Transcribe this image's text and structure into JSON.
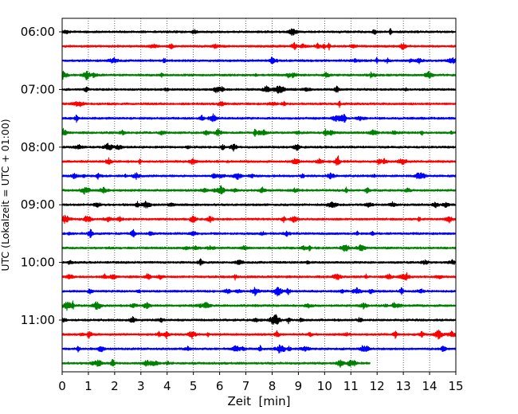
{
  "chart_data": {
    "type": "line",
    "subtype": "helicorder-seismogram",
    "title": "",
    "xlabel": "Zeit  [min]",
    "ylabel": "UTC (Lokalzeit = UTC + 01:00)",
    "xlim": [
      0,
      15
    ],
    "x_ticks": [
      "0",
      "1",
      "2",
      "3",
      "4",
      "5",
      "6",
      "7",
      "8",
      "9",
      "10",
      "11",
      "12",
      "13",
      "14",
      "15"
    ],
    "y_ticks": [
      "06:00",
      "07:00",
      "08:00",
      "09:00",
      "10:00",
      "11:00"
    ],
    "grid": "vertical dotted lines at each minute",
    "trace_colors": [
      "#000000",
      "#ff0000",
      "#0000ff",
      "#008000"
    ],
    "traces": [
      {
        "start": "06:00",
        "end_min": 15
      },
      {
        "start": "06:15",
        "end_min": 15
      },
      {
        "start": "06:30",
        "end_min": 15
      },
      {
        "start": "06:45",
        "end_min": 15
      },
      {
        "start": "07:00",
        "end_min": 15
      },
      {
        "start": "07:15",
        "end_min": 15
      },
      {
        "start": "07:30",
        "end_min": 15
      },
      {
        "start": "07:45",
        "end_min": 15
      },
      {
        "start": "08:00",
        "end_min": 15
      },
      {
        "start": "08:15",
        "end_min": 15
      },
      {
        "start": "08:30",
        "end_min": 15
      },
      {
        "start": "08:45",
        "end_min": 15
      },
      {
        "start": "09:00",
        "end_min": 15
      },
      {
        "start": "09:15",
        "end_min": 15
      },
      {
        "start": "09:30",
        "end_min": 15
      },
      {
        "start": "09:45",
        "end_min": 15
      },
      {
        "start": "10:00",
        "end_min": 15
      },
      {
        "start": "10:15",
        "end_min": 15
      },
      {
        "start": "10:30",
        "end_min": 15
      },
      {
        "start": "10:45",
        "end_min": 15
      },
      {
        "start": "11:00",
        "end_min": 15
      },
      {
        "start": "11:15",
        "end_min": 15
      },
      {
        "start": "11:30",
        "end_min": 15
      },
      {
        "start": "11:45",
        "end_min": 11.75
      }
    ]
  }
}
